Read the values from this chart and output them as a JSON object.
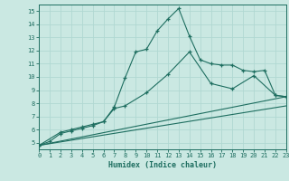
{
  "background_color": "#cae8e2",
  "grid_color": "#b0d8d2",
  "line_color": "#1e6e60",
  "xlabel": "Humidex (Indice chaleur)",
  "xlim": [
    0,
    23
  ],
  "ylim": [
    4.5,
    15.5
  ],
  "yticks": [
    5,
    6,
    7,
    8,
    9,
    10,
    11,
    12,
    13,
    14,
    15
  ],
  "xticks": [
    0,
    1,
    2,
    3,
    4,
    5,
    6,
    7,
    8,
    9,
    10,
    11,
    12,
    13,
    14,
    15,
    16,
    17,
    18,
    19,
    20,
    21,
    22,
    23
  ],
  "line1_x": [
    0,
    1,
    2,
    3,
    4,
    5,
    6,
    7,
    8,
    9,
    10,
    11,
    12,
    13,
    14,
    15,
    16,
    17,
    18,
    19,
    20,
    21,
    22,
    23
  ],
  "line1_y": [
    4.8,
    5.1,
    5.7,
    5.9,
    6.1,
    6.3,
    6.6,
    7.7,
    9.9,
    11.9,
    12.1,
    13.5,
    14.4,
    15.2,
    13.1,
    11.3,
    11.0,
    10.9,
    10.9,
    10.5,
    10.4,
    10.5,
    8.6,
    8.5
  ],
  "line2_x": [
    0,
    2,
    3,
    4,
    5,
    6,
    7,
    8,
    10,
    12,
    14,
    16,
    18,
    20,
    22,
    23
  ],
  "line2_y": [
    4.8,
    5.8,
    6.0,
    6.2,
    6.4,
    6.6,
    7.6,
    7.8,
    8.8,
    10.2,
    11.9,
    9.5,
    9.1,
    10.1,
    8.6,
    8.5
  ],
  "line3_x": [
    0,
    23
  ],
  "line3_y": [
    4.8,
    8.5
  ],
  "line4_x": [
    0,
    23
  ],
  "line4_y": [
    4.8,
    7.8
  ]
}
